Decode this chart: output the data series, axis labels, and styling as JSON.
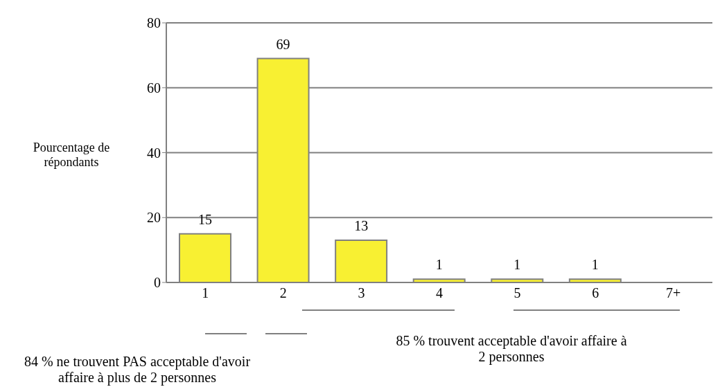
{
  "chart_data": {
    "type": "bar",
    "ylabel": "Pourcentage de répondants",
    "categories": [
      "1",
      "2",
      "3",
      "4",
      "5",
      "6",
      "7+"
    ],
    "values": [
      15,
      69,
      13,
      1,
      1,
      1,
      null
    ],
    "color": "#f8f032",
    "ylim": [
      0,
      80
    ],
    "yticks": [
      0,
      20,
      40,
      60,
      80
    ],
    "grid": "y",
    "data_labels": true,
    "legend": false,
    "annotations": [
      "84 % ne trouvent PAS acceptable d'avoir affaire à plus de 2 personnes",
      "85 % trouvent acceptable d'avoir affaire à 2 personnes"
    ]
  }
}
